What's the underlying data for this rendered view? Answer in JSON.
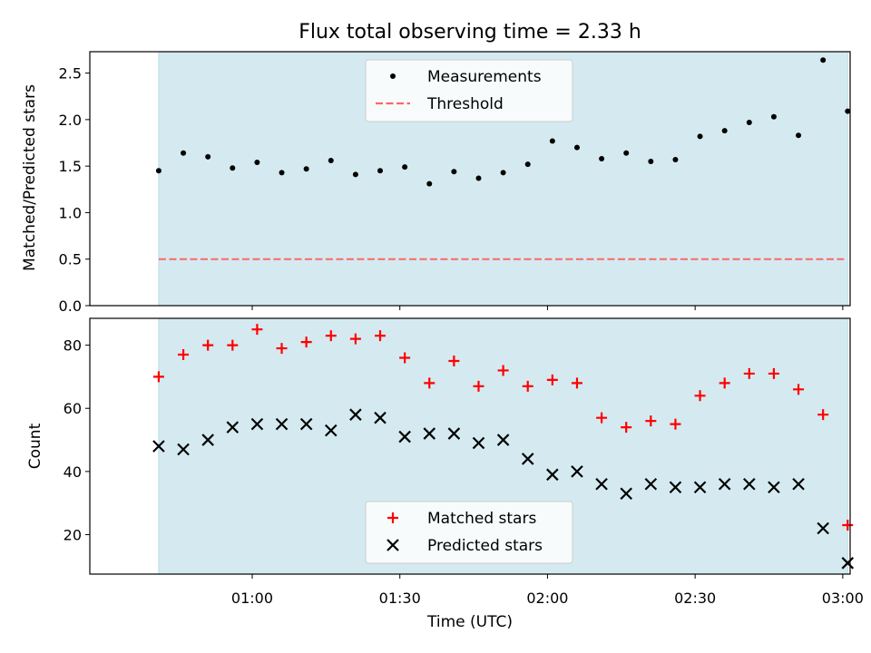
{
  "title": "Flux total observing time = 2.33 h",
  "chart_data": [
    {
      "type": "scatter",
      "ylabel": "Matched/Predicted stars",
      "xlim_minutes": [
        27,
        181.5
      ],
      "ylim": [
        0,
        2.73
      ],
      "yticks": [
        0.0,
        0.5,
        1.0,
        1.5,
        2.0,
        2.5
      ],
      "ytick_labels": [
        "0.0",
        "0.5",
        "1.0",
        "1.5",
        "2.0",
        "2.5"
      ],
      "grid": false,
      "legend_placement": "upper center",
      "observing_span": [
        "00:41",
        "03:01"
      ],
      "threshold": 0.5,
      "series": [
        {
          "name": "Measurements",
          "marker": "dot",
          "color": "#000000",
          "x": [
            "00:41",
            "00:46",
            "00:51",
            "00:56",
            "01:01",
            "01:06",
            "01:11",
            "01:16",
            "01:21",
            "01:26",
            "01:31",
            "01:36",
            "01:41",
            "01:46",
            "01:51",
            "01:56",
            "02:01",
            "02:06",
            "02:11",
            "02:16",
            "02:21",
            "02:26",
            "02:31",
            "02:36",
            "02:41",
            "02:46",
            "02:51",
            "02:56",
            "03:01"
          ],
          "y": [
            1.45,
            1.64,
            1.6,
            1.48,
            1.54,
            1.43,
            1.47,
            1.56,
            1.41,
            1.45,
            1.49,
            1.31,
            1.44,
            1.37,
            1.43,
            1.52,
            1.77,
            1.7,
            1.58,
            1.64,
            1.55,
            1.57,
            1.82,
            1.88,
            1.97,
            2.03,
            1.83,
            2.64,
            2.09
          ]
        },
        {
          "name": "Threshold",
          "marker": "dashed-line",
          "color": "#ff6666"
        }
      ]
    },
    {
      "type": "scatter",
      "xlabel": "Time (UTC)",
      "ylabel": "Count",
      "xlim_minutes": [
        27,
        181.5
      ],
      "ylim": [
        7.5,
        88.5
      ],
      "yticks": [
        20,
        40,
        60,
        80
      ],
      "ytick_labels": [
        "20",
        "40",
        "60",
        "80"
      ],
      "xtick_labels": [
        "01:00",
        "01:30",
        "02:00",
        "02:30",
        "03:00"
      ],
      "xtick_times": [
        60,
        90,
        120,
        150,
        180
      ],
      "grid": false,
      "legend_placement": "lower center",
      "observing_span": [
        "00:41",
        "03:01"
      ],
      "series": [
        {
          "name": "Matched stars",
          "marker": "plus",
          "color": "#ff0000",
          "x": [
            "00:41",
            "00:46",
            "00:51",
            "00:56",
            "01:01",
            "01:06",
            "01:11",
            "01:16",
            "01:21",
            "01:26",
            "01:31",
            "01:36",
            "01:41",
            "01:46",
            "01:51",
            "01:56",
            "02:01",
            "02:06",
            "02:11",
            "02:16",
            "02:21",
            "02:26",
            "02:31",
            "02:36",
            "02:41",
            "02:46",
            "02:51",
            "02:56",
            "03:01"
          ],
          "y": [
            70,
            77,
            80,
            80,
            85,
            79,
            81,
            83,
            82,
            83,
            76,
            68,
            75,
            67,
            72,
            67,
            69,
            68,
            57,
            54,
            56,
            55,
            64,
            68,
            71,
            71,
            66,
            58,
            23
          ]
        },
        {
          "name": "Predicted stars",
          "marker": "x",
          "color": "#000000",
          "x": [
            "00:41",
            "00:46",
            "00:51",
            "00:56",
            "01:01",
            "01:06",
            "01:11",
            "01:16",
            "01:21",
            "01:26",
            "01:31",
            "01:36",
            "01:41",
            "01:46",
            "01:51",
            "01:56",
            "02:01",
            "02:06",
            "02:11",
            "02:16",
            "02:21",
            "02:26",
            "02:31",
            "02:36",
            "02:41",
            "02:46",
            "02:51",
            "02:56",
            "03:01"
          ],
          "y": [
            48,
            47,
            50,
            54,
            55,
            55,
            55,
            53,
            58,
            57,
            51,
            52,
            52,
            49,
            50,
            44,
            39,
            40,
            36,
            33,
            36,
            35,
            35,
            36,
            36,
            35,
            36,
            22,
            11
          ]
        }
      ]
    }
  ],
  "colors": {
    "span_fill": "#d4eaf0",
    "threshold": "#ff6666",
    "matched": "#ff0000",
    "predicted": "#000000"
  }
}
